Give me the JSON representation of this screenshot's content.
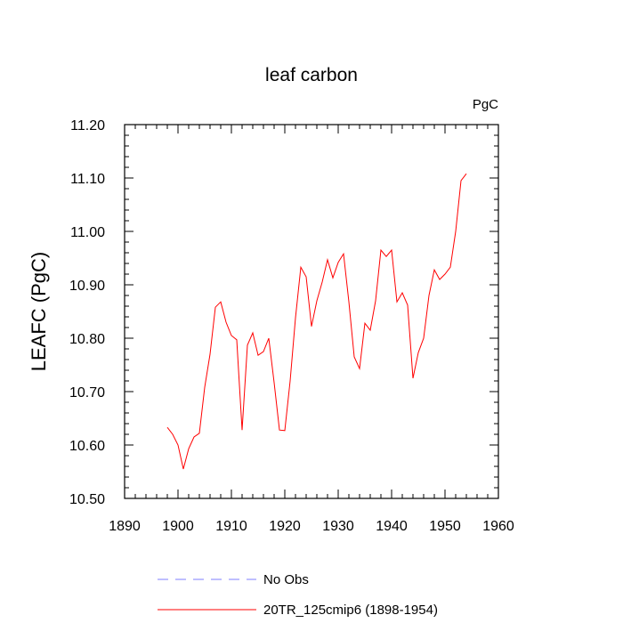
{
  "chart_data": {
    "type": "line",
    "title": "leaf carbon",
    "units_label": "PgC",
    "ylabel": "LEAFC  (PgC)",
    "xlabel": "",
    "xlim": [
      1890,
      1960
    ],
    "ylim": [
      10.5,
      11.2
    ],
    "x_ticks": [
      "1890",
      "1900",
      "1910",
      "1920",
      "1930",
      "1940",
      "1950",
      "1960"
    ],
    "y_ticks": [
      "10.50",
      "10.60",
      "10.70",
      "10.80",
      "10.90",
      "11.00",
      "11.10",
      "11.20"
    ],
    "grid": false,
    "legend_position": "bottom",
    "series": [
      {
        "name": "20TR_125cmip6 (1898-1954)",
        "color": "#ff0000",
        "dash": "solid",
        "x": [
          1898,
          1899,
          1900,
          1901,
          1902,
          1903,
          1904,
          1905,
          1906,
          1907,
          1908,
          1909,
          1910,
          1911,
          1912,
          1913,
          1914,
          1915,
          1916,
          1917,
          1918,
          1919,
          1920,
          1921,
          1922,
          1923,
          1924,
          1925,
          1926,
          1927,
          1928,
          1929,
          1930,
          1931,
          1932,
          1933,
          1934,
          1935,
          1936,
          1937,
          1938,
          1939,
          1940,
          1941,
          1942,
          1943,
          1944,
          1945,
          1946,
          1947,
          1948,
          1949,
          1950,
          1951,
          1952,
          1953,
          1954
        ],
        "y": [
          10.633,
          10.62,
          10.6,
          10.555,
          10.593,
          10.615,
          10.622,
          10.708,
          10.77,
          10.858,
          10.868,
          10.83,
          10.805,
          10.797,
          10.628,
          10.787,
          10.81,
          10.768,
          10.775,
          10.8,
          10.717,
          10.628,
          10.627,
          10.72,
          10.838,
          10.933,
          10.915,
          10.822,
          10.87,
          10.905,
          10.947,
          10.913,
          10.942,
          10.958,
          10.868,
          10.765,
          10.743,
          10.828,
          10.815,
          10.87,
          10.965,
          10.953,
          10.965,
          10.868,
          10.885,
          10.862,
          10.725,
          10.773,
          10.8,
          10.88,
          10.928,
          10.91,
          10.92,
          10.933,
          11.0,
          11.095,
          11.108
        ]
      },
      {
        "name": "No Obs",
        "color": "#7f7fff",
        "dash": "dashed",
        "x": [],
        "y": []
      }
    ]
  }
}
